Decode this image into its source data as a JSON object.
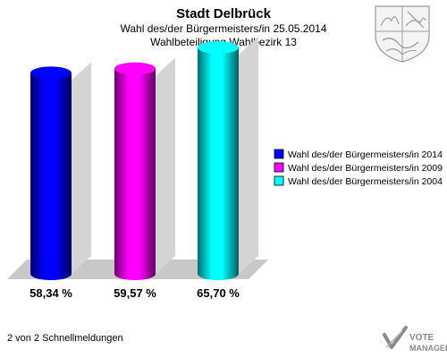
{
  "chart_data": {
    "type": "bar",
    "title": "Stadt Delbrück",
    "subtitle": "Wahl des/der Bürgermeisters/in  25.05.2014",
    "subtitle2": "Wahlbeteiligung Wahlbezirk 13",
    "categories": [
      "Wahl des/der Bürgermeisters/in  2014",
      "Wahl des/der Bürgermeisters/in 2009",
      "Wahl des/der Bürgermeisters/in  2004"
    ],
    "values": [
      58.34,
      59.57,
      65.7
    ],
    "value_labels": [
      "58,34 %",
      "59,57 %",
      "65,70 %"
    ],
    "colors": [
      "#0000ff",
      "#ff00ff",
      "#00ffff"
    ],
    "unit": "%",
    "ylim": [
      0,
      70
    ],
    "legend_position": "right",
    "grid": false
  },
  "footer": {
    "page_info": "2 von 2 Schnellmeldungen"
  },
  "brand": {
    "line1": "VOTE",
    "line2": "MANAGER",
    "icon": "vote-manager-logo-icon"
  },
  "crest": {
    "icon": "coat-of-arms-icon"
  }
}
